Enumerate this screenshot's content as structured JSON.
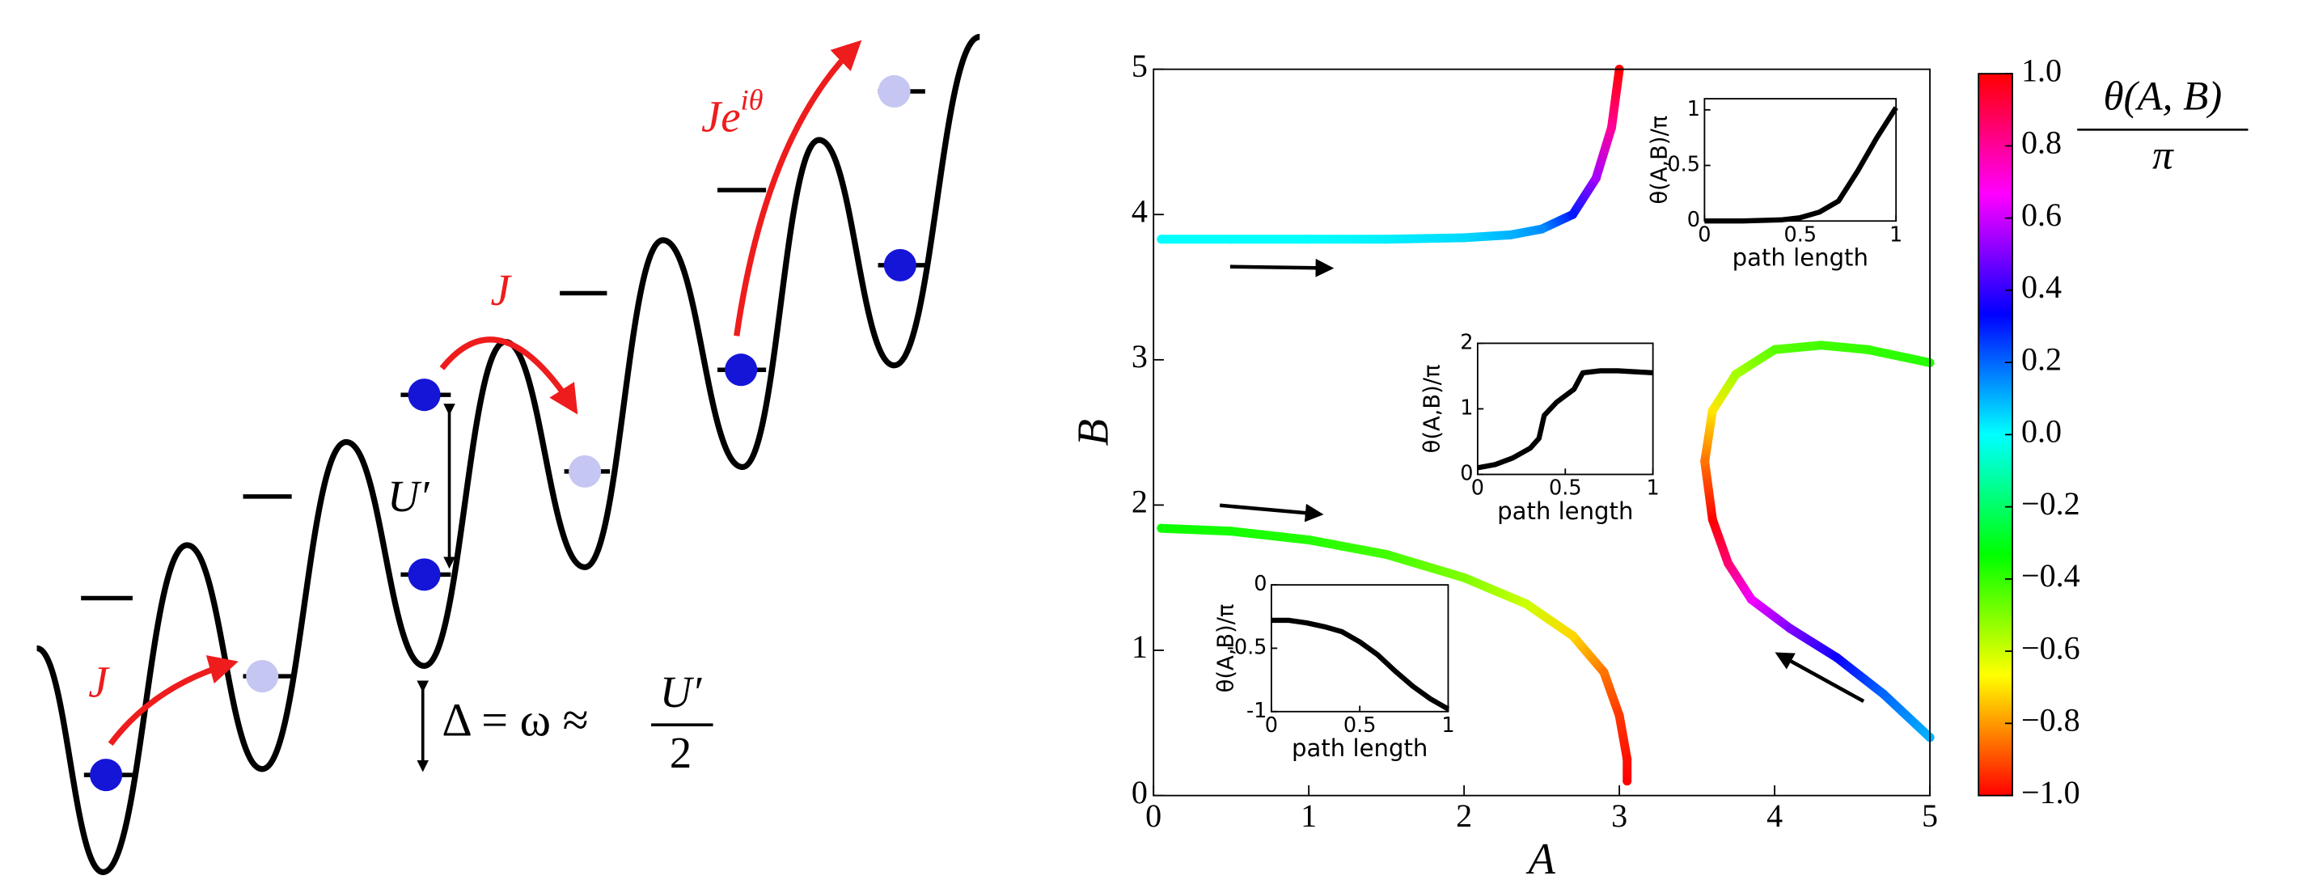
{
  "diagram": {
    "hop_left": "J",
    "hop_middle": "J",
    "hop_phase": {
      "base": "Je",
      "sup": "iθ"
    },
    "interaction": "U′",
    "detuning": {
      "lhs": "Δ = ω ≈",
      "numerator": "U′",
      "denominator": "2"
    }
  },
  "chart_data": [
    {
      "type": "line",
      "xlabel": "A",
      "ylabel": "B",
      "xlim": [
        0,
        5
      ],
      "ylim": [
        0,
        5
      ],
      "xticks": [
        0,
        1,
        2,
        3,
        4,
        5
      ],
      "yticks": [
        0,
        1,
        2,
        3,
        4,
        5
      ],
      "colormap": "hsv",
      "clim": [
        -1,
        1
      ],
      "colorbar": {
        "label": {
          "numerator": "θ(A, B)",
          "denominator": "π"
        },
        "ticks": [
          {
            "value": 1,
            "label": "1.0"
          },
          0.8,
          0.6,
          0.4,
          0.2,
          {
            "value": 0,
            "label": "0.0"
          },
          {
            "value": -0.2,
            "label": "−0.2"
          },
          {
            "value": -0.4,
            "label": "−0.4"
          },
          {
            "value": -0.6,
            "label": "−0.6"
          },
          {
            "value": -0.8,
            "label": "−0.8"
          },
          {
            "value": -1,
            "label": "−1.0"
          }
        ]
      },
      "series": [
        {
          "x": [
            0.05,
            0.5,
            1,
            1.5,
            2,
            2.3,
            2.5,
            2.7,
            2.85,
            2.95,
            3.0
          ],
          "values": [
            3.83,
            3.83,
            3.83,
            3.83,
            3.84,
            3.86,
            3.9,
            4.0,
            4.25,
            4.6,
            5.0
          ],
          "theta": [
            0,
            0,
            0,
            0.02,
            0.05,
            0.1,
            0.15,
            0.3,
            0.55,
            0.8,
            1.0
          ]
        },
        {
          "x": [
            0.05,
            0.5,
            1,
            1.5,
            2,
            2.4,
            2.7,
            2.9,
            3.0,
            3.05,
            3.05
          ],
          "values": [
            1.84,
            1.82,
            1.76,
            1.66,
            1.5,
            1.32,
            1.1,
            0.85,
            0.55,
            0.25,
            0.1
          ],
          "theta": [
            -0.35,
            -0.36,
            -0.38,
            -0.42,
            -0.5,
            -0.6,
            -0.72,
            -0.85,
            -0.93,
            -0.98,
            -1.0
          ]
        },
        {
          "x": [
            5.0,
            4.7,
            4.4,
            4.1,
            3.85,
            3.7,
            3.6,
            3.55,
            3.6,
            3.75,
            4.0,
            4.3,
            4.6,
            5.0
          ],
          "values": [
            0.4,
            0.7,
            0.95,
            1.15,
            1.35,
            1.6,
            1.9,
            2.3,
            2.65,
            2.9,
            3.07,
            3.1,
            3.07,
            2.98
          ],
          "theta": [
            0.1,
            0.2,
            0.35,
            0.5,
            0.65,
            0.85,
            1.0,
            -0.85,
            -0.7,
            -0.55,
            -0.45,
            -0.42,
            -0.4,
            -0.38
          ]
        }
      ]
    },
    {
      "type": "line",
      "xlabel": "path length",
      "ylabel": "θ(A,B)/π",
      "xlim": [
        0,
        1
      ],
      "ylim": [
        0,
        1.1
      ],
      "xticks": [
        0,
        0.5,
        1
      ],
      "yticks": [
        0,
        0.5,
        1
      ],
      "color": "#000000",
      "x": [
        0,
        0.2,
        0.4,
        0.5,
        0.6,
        0.7,
        0.8,
        0.9,
        1
      ],
      "values": [
        0,
        0,
        0.01,
        0.03,
        0.08,
        0.18,
        0.45,
        0.75,
        1.02
      ]
    },
    {
      "type": "line",
      "xlabel": "path length",
      "ylabel": "θ(A,B)/π",
      "xlim": [
        0,
        1
      ],
      "ylim": [
        0,
        2
      ],
      "xticks": [
        0,
        0.5,
        1
      ],
      "yticks": [
        0,
        1,
        2
      ],
      "color": "#000000",
      "x": [
        0,
        0.1,
        0.2,
        0.3,
        0.35,
        0.38,
        0.45,
        0.55,
        0.6,
        0.7,
        0.8,
        1
      ],
      "values": [
        0.1,
        0.15,
        0.25,
        0.4,
        0.55,
        0.9,
        1.1,
        1.3,
        1.55,
        1.58,
        1.58,
        1.55
      ]
    },
    {
      "type": "line",
      "xlabel": "path length",
      "ylabel": "θ(A,B)/π",
      "xlim": [
        0,
        1
      ],
      "ylim": [
        -1,
        0
      ],
      "xticks": [
        0,
        0.5,
        1
      ],
      "yticks": [
        -1,
        -0.5,
        0
      ],
      "color": "#000000",
      "x": [
        0,
        0.1,
        0.2,
        0.3,
        0.4,
        0.5,
        0.6,
        0.7,
        0.8,
        0.9,
        1
      ],
      "values": [
        -0.28,
        -0.28,
        -0.3,
        -0.33,
        -0.37,
        -0.45,
        -0.55,
        -0.68,
        -0.8,
        -0.9,
        -0.98
      ]
    }
  ]
}
